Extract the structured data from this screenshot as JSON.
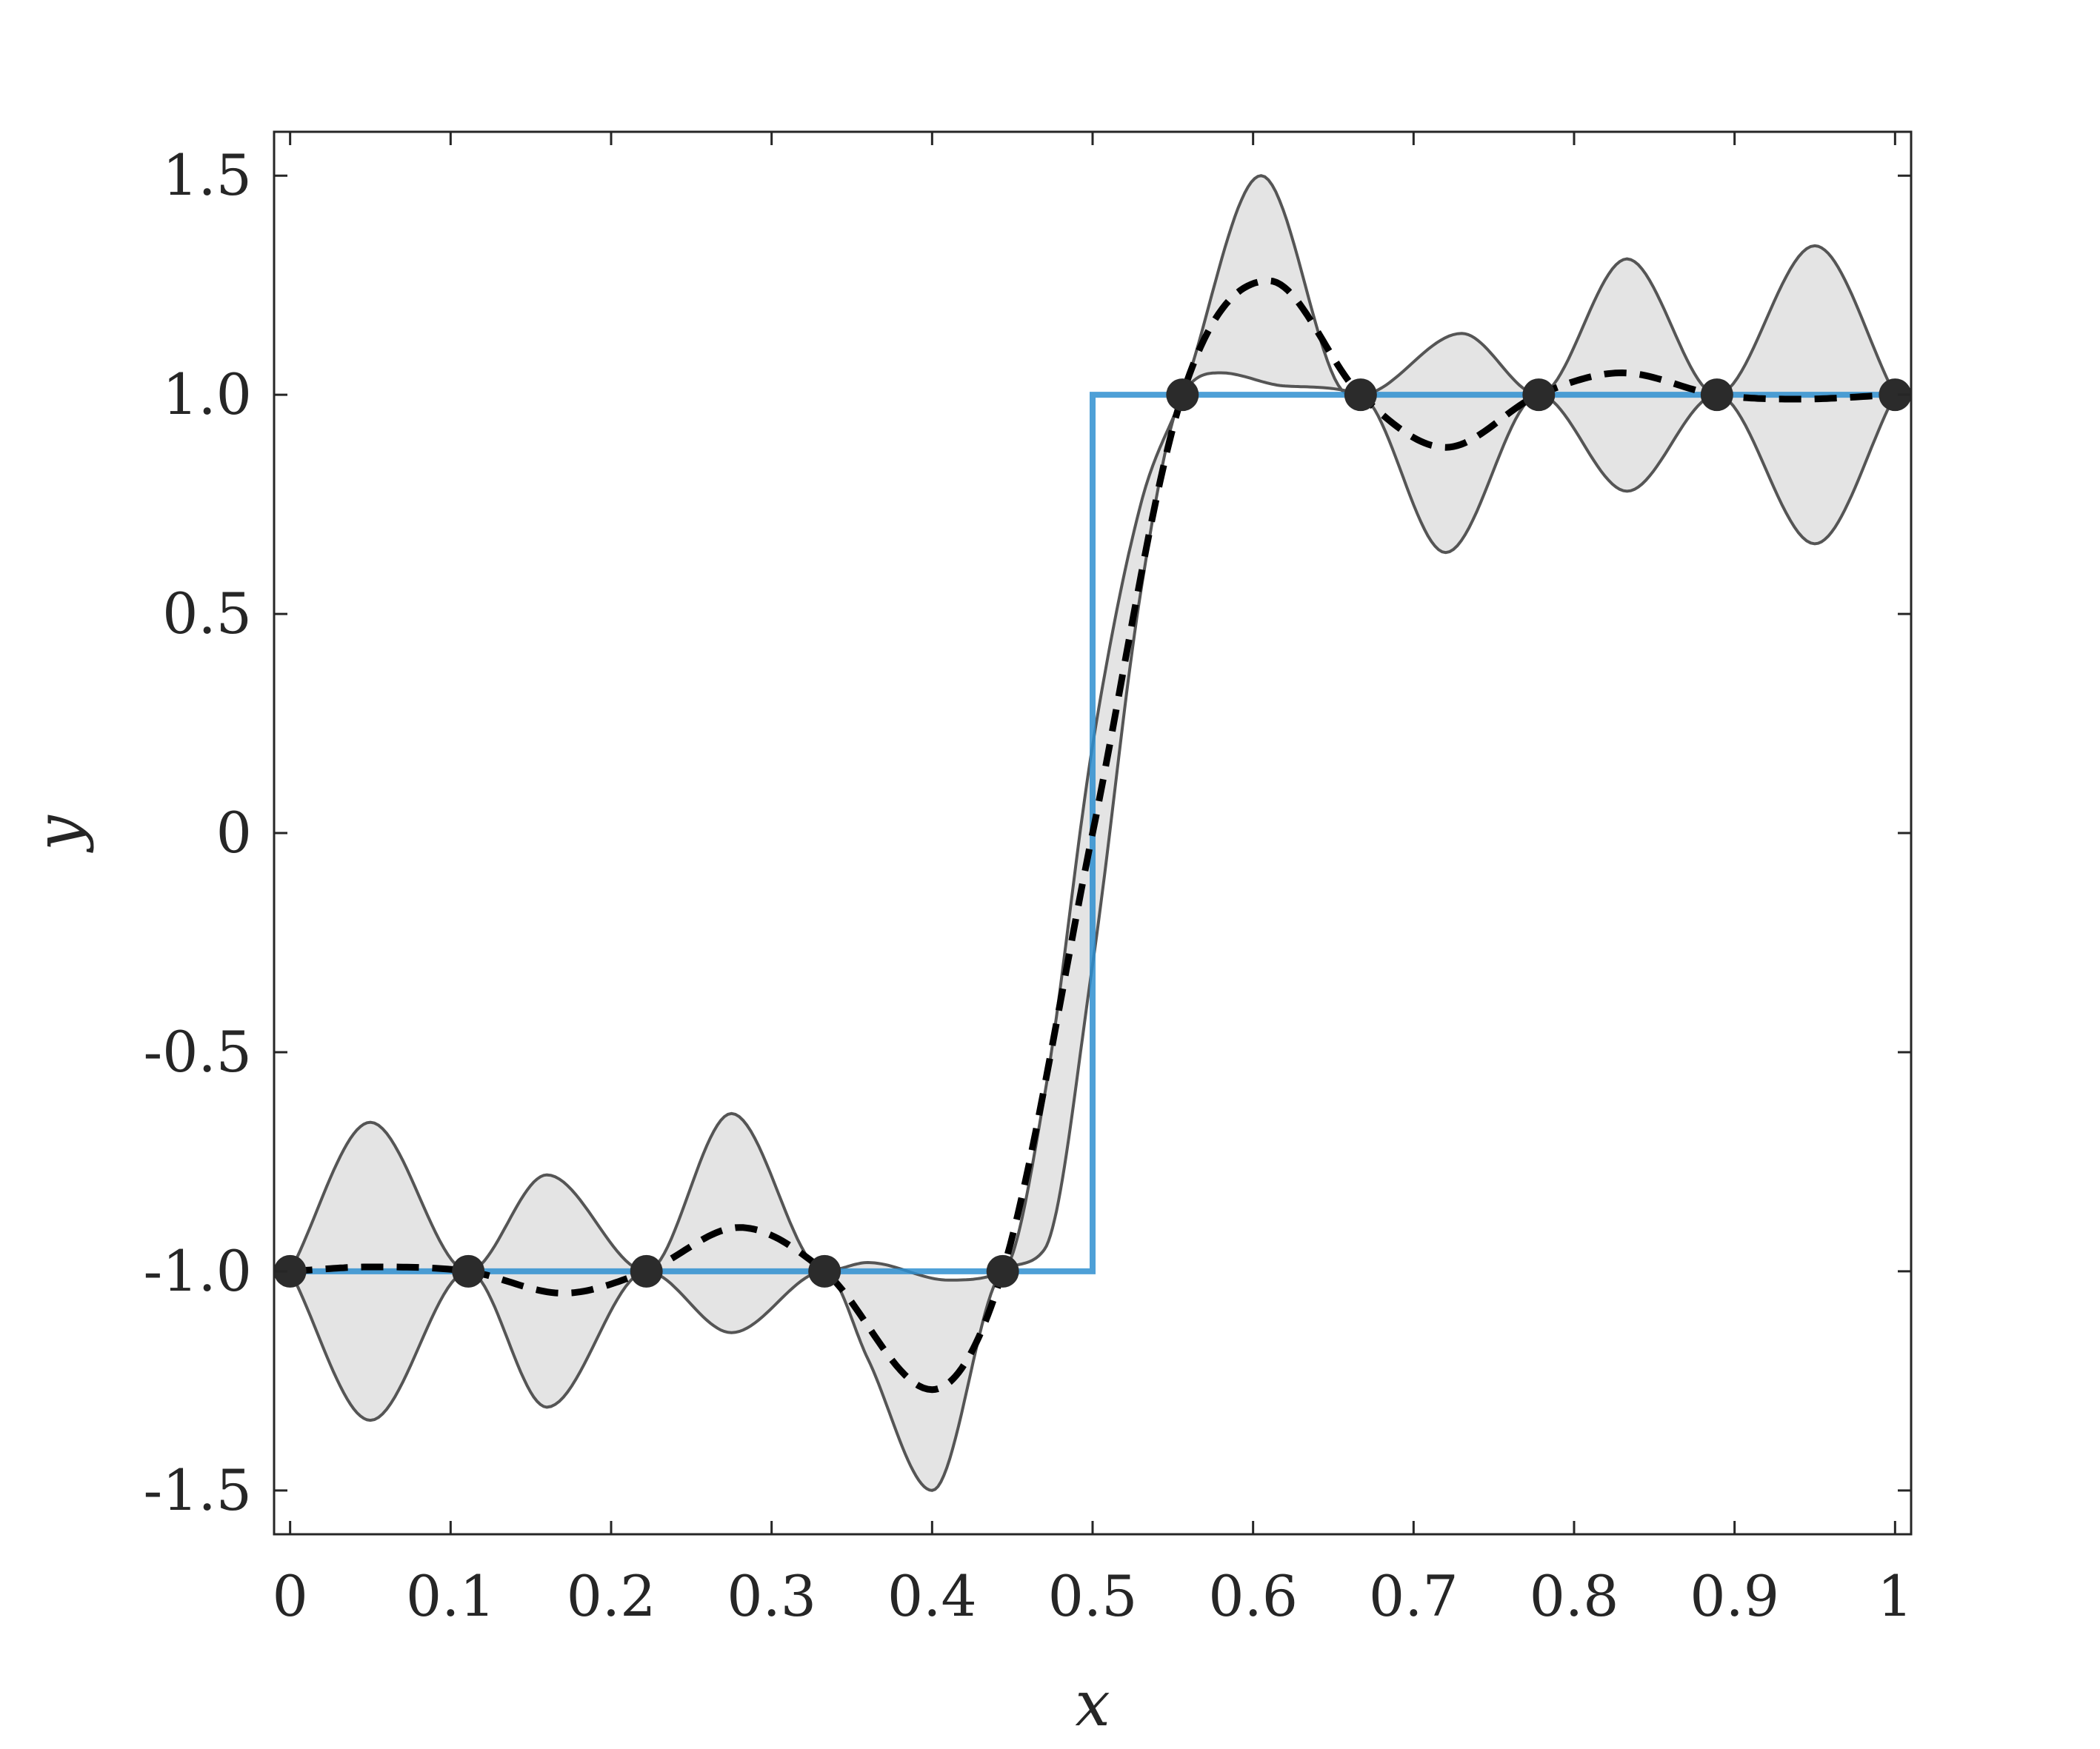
{
  "chart_data": {
    "type": "line",
    "title": "",
    "xlabel": "x",
    "ylabel": "y",
    "xlim": [
      -0.01,
      1.01
    ],
    "ylim": [
      -1.6,
      1.6
    ],
    "xticks": [
      0,
      0.1,
      0.2,
      0.3,
      0.4,
      0.5,
      0.6,
      0.7,
      0.8,
      0.9,
      1
    ],
    "xtick_labels": [
      "0",
      "0.1",
      "0.2",
      "0.3",
      "0.4",
      "0.5",
      "0.6",
      "0.7",
      "0.8",
      "0.9",
      "1"
    ],
    "yticks": [
      -1.5,
      -1.0,
      -0.5,
      0,
      0.5,
      1.0,
      1.5
    ],
    "ytick_labels": [
      "-1.5",
      "-1.0",
      "-0.5",
      "0",
      "0.5",
      "1.0",
      "1.5"
    ],
    "grid": false,
    "legend": "none",
    "colors": {
      "step": "#2f8fd0",
      "mean": "#000000",
      "band_fill": "#e4e4e4",
      "band_edge": "#555555",
      "points": "#2b2b2b",
      "axes": "#262626"
    },
    "series": [
      {
        "kind": "step",
        "x": [
          0,
          0.5,
          0.5,
          1
        ],
        "y": [
          -1,
          -1,
          1,
          1
        ]
      },
      {
        "kind": "band-upper",
        "x": [
          0,
          0.05,
          0.111,
          0.16,
          0.222,
          0.275,
          0.333,
          0.36,
          0.41,
          0.444,
          0.47,
          0.5,
          0.53,
          0.556,
          0.605,
          0.66,
          0.667,
          0.73,
          0.778,
          0.833,
          0.889,
          0.95,
          1
        ],
        "y": [
          -1,
          -0.66,
          -1,
          -0.78,
          -1,
          -0.64,
          -1,
          -0.98,
          -1.02,
          -1,
          -0.6,
          0.2,
          0.75,
          1,
          1.5,
          1.0,
          1,
          1.14,
          1,
          1.31,
          1,
          1.34,
          1
        ]
      },
      {
        "kind": "band-lower",
        "x": [
          0,
          0.05,
          0.111,
          0.16,
          0.222,
          0.275,
          0.333,
          0.36,
          0.4,
          0.444,
          0.47,
          0.5,
          0.53,
          0.556,
          0.58,
          0.62,
          0.667,
          0.72,
          0.778,
          0.833,
          0.889,
          0.95,
          1
        ],
        "y": [
          -1,
          -1.34,
          -1,
          -1.31,
          -1,
          -1.14,
          -1,
          -1.2,
          -1.5,
          -1,
          -0.95,
          -0.3,
          0.55,
          1,
          1.05,
          1.02,
          1,
          0.64,
          1,
          0.78,
          1,
          0.66,
          1
        ]
      },
      {
        "kind": "mean",
        "x": [
          0,
          0.05,
          0.111,
          0.17,
          0.222,
          0.28,
          0.333,
          0.4,
          0.444,
          0.5,
          0.556,
          0.61,
          0.667,
          0.72,
          0.778,
          0.83,
          0.889,
          0.94,
          1
        ],
        "y": [
          -1,
          -0.99,
          -1,
          -1.05,
          -1,
          -0.9,
          -1,
          -1.27,
          -1,
          0,
          1,
          1.26,
          1,
          0.88,
          1,
          1.05,
          1,
          0.99,
          1
        ]
      },
      {
        "kind": "points",
        "x": [
          0,
          0.111,
          0.222,
          0.333,
          0.444,
          0.556,
          0.667,
          0.778,
          0.889,
          1
        ],
        "y": [
          -1,
          -1,
          -1,
          -1,
          -1,
          1,
          1,
          1,
          1,
          1
        ]
      }
    ]
  }
}
